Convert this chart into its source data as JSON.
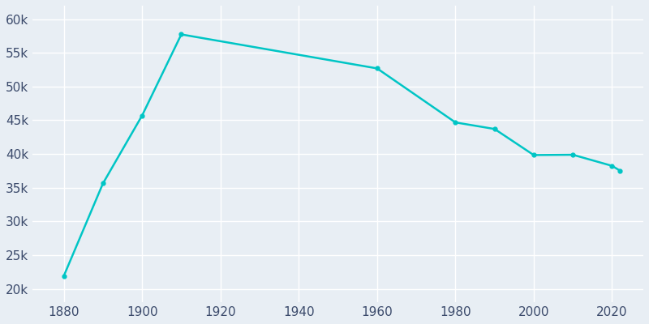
{
  "years": [
    1880,
    1890,
    1900,
    1910,
    1960,
    1980,
    1990,
    2000,
    2010,
    2020,
    2022
  ],
  "population": [
    21915,
    35637,
    45712,
    57730,
    52689,
    44678,
    43704,
    39838,
    39880,
    38238,
    37535
  ],
  "line_color": "#00C5C5",
  "marker": "o",
  "marker_size": 3.5,
  "bg_color": "#E8EEF4",
  "grid_color": "#FFFFFF",
  "tick_color": "#3B4A6B",
  "ytick_labels": [
    "20k",
    "25k",
    "30k",
    "35k",
    "40k",
    "45k",
    "50k",
    "55k",
    "60k"
  ],
  "ytick_values": [
    20000,
    25000,
    30000,
    35000,
    40000,
    45000,
    50000,
    55000,
    60000
  ],
  "xtick_values": [
    1880,
    1900,
    1920,
    1940,
    1960,
    1980,
    2000,
    2020
  ],
  "ylim": [
    18000,
    62000
  ],
  "xlim": [
    1872,
    2028
  ]
}
